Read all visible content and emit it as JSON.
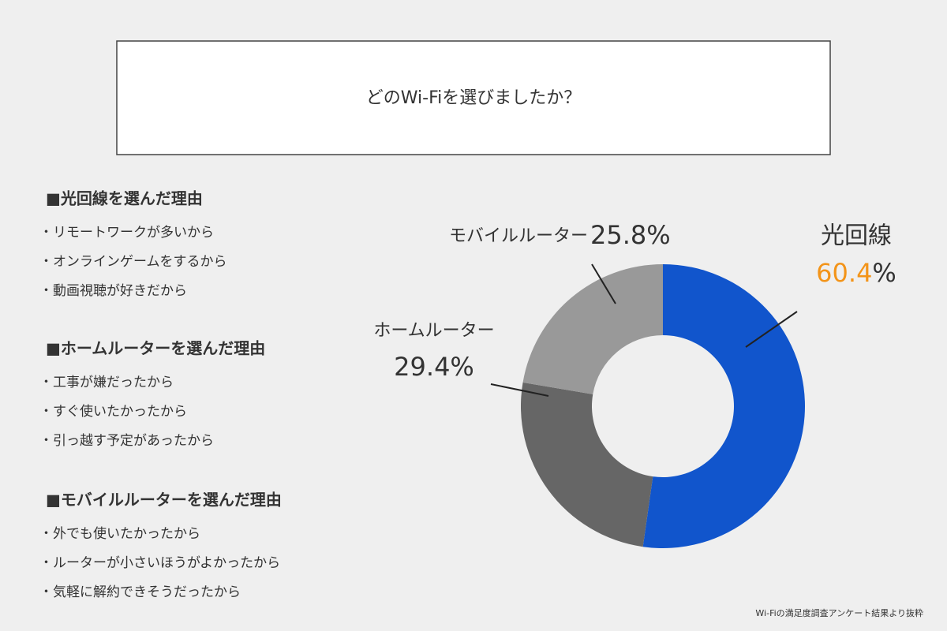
{
  "header": {
    "title": "どのWi-Fiを選びましたか？"
  },
  "reasons": [
    {
      "heading": "■光回線を選んだ理由",
      "items": [
        "・リモートワークが多いから",
        "・オンラインゲームをするから",
        "・動画視聴が好きだから"
      ]
    },
    {
      "heading": "■ホームルーターを選んだ理由",
      "items": [
        "・工事が嫌だったから",
        "・すぐ使いたかったから",
        "・引っ越す予定があったから"
      ]
    },
    {
      "heading": "■モバイルルーターを選んだ理由",
      "items": [
        "・外でも使いたかったから",
        "・ルーターが小さいほうがよかったから",
        "・気軽に解約できそうだったから"
      ]
    }
  ],
  "source": "Wi-Fiの満足度調査アンケート結果より抜粋",
  "chart_data": {
    "type": "donut",
    "categories": [
      "光回線",
      "ホームルーター",
      "モバイルルーター"
    ],
    "values": [
      60.4,
      29.4,
      25.8
    ],
    "value_labels": [
      "60.4%",
      "29.4%",
      "25.8%"
    ],
    "colors": [
      "#1155cc",
      "#666666",
      "#999999"
    ],
    "highlight_color": "#f39419"
  }
}
